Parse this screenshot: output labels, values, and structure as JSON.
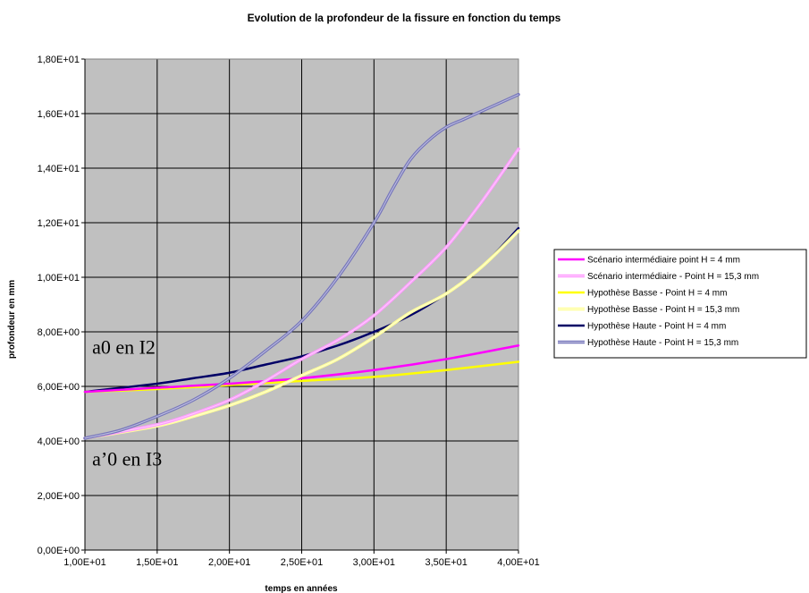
{
  "chart_data": {
    "type": "line",
    "title": "Evolution de la profondeur de la fissure en fonction du temps",
    "xlabel": "temps en années",
    "ylabel": "profondeur en mm",
    "xlim": [
      10,
      40
    ],
    "ylim": [
      0,
      18
    ],
    "x_ticks": [
      10,
      15,
      20,
      25,
      30,
      35,
      40
    ],
    "x_tick_labels": [
      "1,00E+01",
      "1,50E+01",
      "2,00E+01",
      "2,50E+01",
      "3,00E+01",
      "3,50E+01",
      "4,00E+01"
    ],
    "y_ticks": [
      0,
      2,
      4,
      6,
      8,
      10,
      12,
      14,
      16,
      18
    ],
    "y_tick_labels": [
      "0,00E+00",
      "2,00E+00",
      "4,00E+00",
      "6,00E+00",
      "8,00E+00",
      "1,00E+01",
      "1,20E+01",
      "1,40E+01",
      "1,60E+01",
      "1,80E+01"
    ],
    "grid": true,
    "background": "#c0c0c0",
    "legend_position": "right",
    "annotations": [
      {
        "text": "a0 en I2",
        "x": 10.5,
        "y": 7.2
      },
      {
        "text": "a’0 en I3",
        "x": 10.5,
        "y": 3.1
      }
    ],
    "series": [
      {
        "name": "Scénario intermédiaire point H = 4 mm",
        "color": "#ff00ff",
        "style": "solid",
        "x": [
          10,
          15,
          20,
          25,
          30,
          35,
          40
        ],
        "y": [
          5.8,
          5.95,
          6.1,
          6.3,
          6.6,
          7.0,
          7.5
        ]
      },
      {
        "name": "Scénario intermédiaire - Point H = 15,3 mm",
        "color": "#ff99ff",
        "style": "double",
        "x": [
          10,
          15,
          17.5,
          20,
          22.5,
          25,
          27.5,
          30,
          32.5,
          35,
          37.5,
          40
        ],
        "y": [
          4.1,
          4.6,
          5.0,
          5.5,
          6.2,
          7.0,
          7.7,
          8.6,
          9.8,
          11.1,
          12.8,
          14.7
        ]
      },
      {
        "name": "Hypothèse Basse - Point H = 4 mm",
        "color": "#ffff00",
        "style": "solid",
        "x": [
          10,
          15,
          20,
          25,
          30,
          35,
          40
        ],
        "y": [
          5.8,
          5.9,
          6.05,
          6.2,
          6.35,
          6.6,
          6.9
        ]
      },
      {
        "name": "Hypothèse Basse - Point H = 15,3 mm",
        "color": "#ffff99",
        "style": "double",
        "x": [
          10,
          15,
          17.5,
          20,
          22.5,
          25,
          27.5,
          30,
          32.5,
          35,
          37.5,
          40
        ],
        "y": [
          4.1,
          4.55,
          4.9,
          5.3,
          5.8,
          6.4,
          7.0,
          7.8,
          8.7,
          9.4,
          10.4,
          11.7
        ]
      },
      {
        "name": "Hypothèse Haute - Point H = 4 mm",
        "color": "#000066",
        "style": "solid",
        "x": [
          10,
          15,
          17.5,
          20,
          22.5,
          25,
          27.5,
          30,
          32.5,
          35,
          37.5,
          40
        ],
        "y": [
          5.8,
          6.1,
          6.3,
          6.5,
          6.8,
          7.1,
          7.5,
          8.0,
          8.6,
          9.4,
          10.4,
          11.8
        ]
      },
      {
        "name": "Hypothèse Haute - Point H = 15,3 mm",
        "color": "#7777bb",
        "style": "double",
        "x": [
          10,
          12.5,
          15,
          17.5,
          20,
          22.5,
          25,
          27.5,
          30,
          31.25,
          32.5,
          33.75,
          35,
          36.25,
          37.5,
          38.75,
          40
        ],
        "y": [
          4.1,
          4.4,
          4.9,
          5.5,
          6.3,
          7.3,
          8.4,
          10.0,
          12.0,
          13.2,
          14.3,
          15.0,
          15.5,
          15.8,
          16.1,
          16.4,
          16.7
        ]
      }
    ]
  }
}
